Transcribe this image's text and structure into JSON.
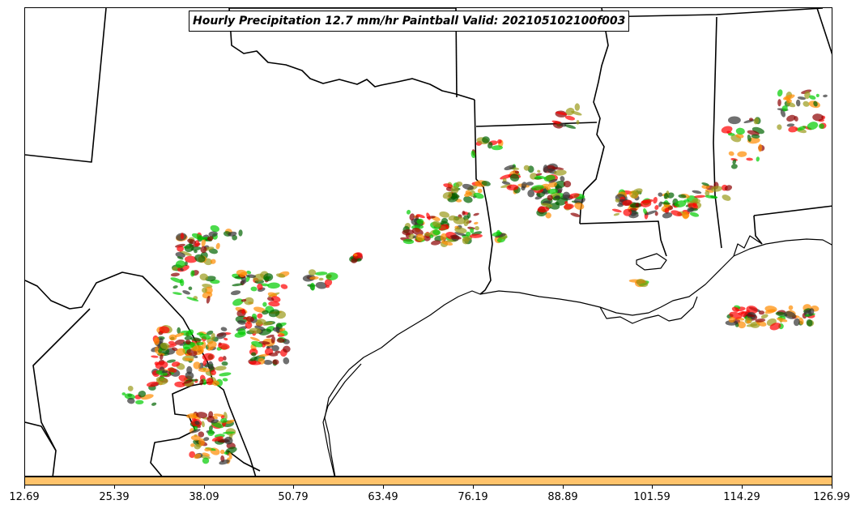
{
  "title": "Hourly Precipitation 12.7 mm/hr Paintball Valid: 202105102100f003",
  "colorbar": {
    "fill_color": "#ffc36b",
    "tick_labels": [
      "12.69",
      "25.39",
      "38.09",
      "50.79",
      "63.49",
      "76.19",
      "88.89",
      "101.59",
      "114.29",
      "126.99"
    ]
  },
  "map": {
    "boundary_color": "#000000",
    "paintball_colors": [
      "#ff0000",
      "#ff8c00",
      "#00cc00",
      "#006400",
      "#8b0000",
      "#9a9a1a",
      "#333333"
    ]
  }
}
